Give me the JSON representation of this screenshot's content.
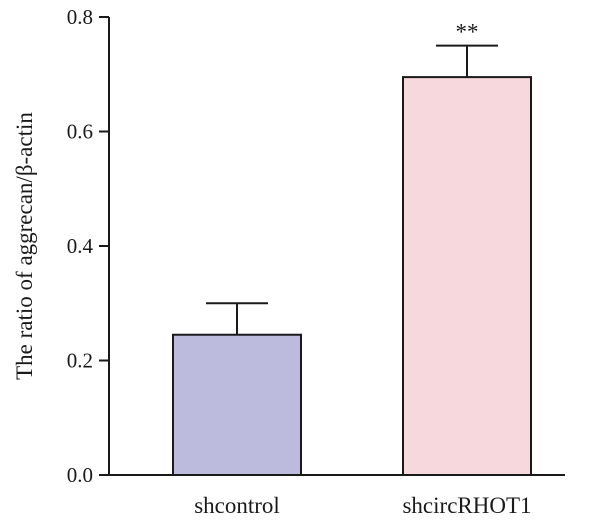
{
  "chart_data": {
    "type": "bar",
    "categories": [
      "shcontrol",
      "shcircRHOT1"
    ],
    "values": [
      0.245,
      0.695
    ],
    "errors": [
      0.055,
      0.055
    ],
    "significance": [
      "",
      "**"
    ],
    "bar_colors": [
      "#bdbbdd",
      "#f7d8dd"
    ],
    "title": "",
    "xlabel": "",
    "ylabel": "The ratio of aggrecan/β-actin",
    "ylim": [
      0,
      0.8
    ],
    "yticks": [
      0.0,
      0.2,
      0.4,
      0.6,
      0.8
    ],
    "ytick_labels": [
      "0.0",
      "0.2",
      "0.4",
      "0.6",
      "0.8"
    ],
    "grid": false,
    "legend": "none"
  }
}
